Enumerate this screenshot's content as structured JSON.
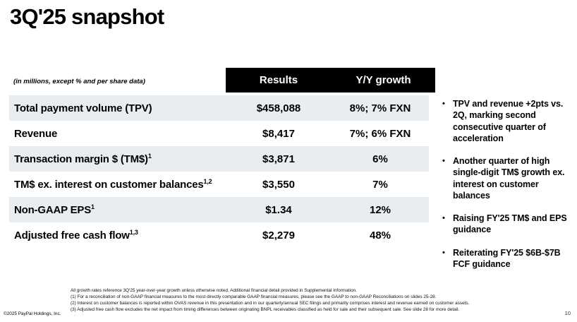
{
  "slide": {
    "title": "3Q'25 snapshot",
    "units_note": "(in millions, except % and per share data)",
    "copyright": "©2025 PayPal Holdings, Inc.",
    "page_number": "10"
  },
  "table": {
    "headers": {
      "results": "Results",
      "yoy_growth": "Y/Y growth"
    },
    "rows": [
      {
        "label": "Total payment volume (TPV)",
        "sup": "",
        "results": "$458,088",
        "yoy": "8%; 7% FXN"
      },
      {
        "label": "Revenue",
        "sup": "",
        "results": "$8,417",
        "yoy": "7%; 6% FXN"
      },
      {
        "label": "Transaction margin $ (TM$)",
        "sup": "1",
        "results": "$3,871",
        "yoy": "6%"
      },
      {
        "label": "TM$ ex. interest on customer balances",
        "sup": "1,2",
        "results": "$3,550",
        "yoy": "7%"
      },
      {
        "label": "Non-GAAP EPS",
        "sup": "1",
        "results": "$1.34",
        "yoy": "12%"
      },
      {
        "label": "Adjusted free cash flow",
        "sup": "1,3",
        "results": "$2,279",
        "yoy": "48%"
      }
    ]
  },
  "highlights": [
    "TPV and revenue +2pts vs. 2Q, marking second consecutive quarter of acceleration",
    "Another quarter of high single-digit TM$ growth ex. interest on customer balances",
    "Raising FY'25 TM$ and EPS guidance",
    "Reiterating FY'25 $6B-$7B FCF guidance"
  ],
  "bullet_glyph": "•",
  "footnotes": [
    "All growth rates reference 3Q'25 year-over-year growth unless otherwise noted. Additional financial detail provided in Supplemental Information.",
    "(1) For a reconciliation of non-GAAP financial measures to the most directly comparable GAAP financial measures, please see the GAAP to non-GAAP Reconciliations on slides 25-28.",
    "(2) Interest on customer balances is reported within OVAS revenue in this presentation and in our quarterly/annual SEC filings and primarily comprises interest and revenue earned on customer assets.",
    "(3) Adjusted free cash flow excludes the net impact from timing differences between originating BNPL receivables classified as held for sale and their subsequent sale. See slide 28 for more detail."
  ],
  "colors": {
    "header_bar": "#000000",
    "row_shade": "#eaedef",
    "text": "#000000"
  }
}
